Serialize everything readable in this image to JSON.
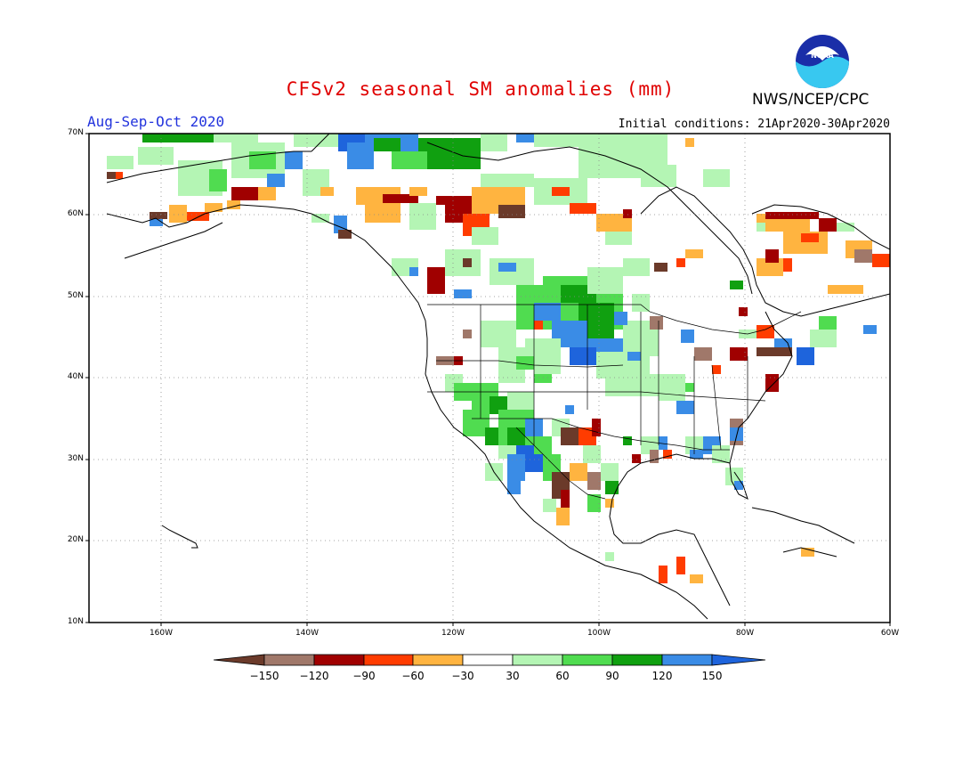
{
  "title": "CFSv2 seasonal SM anomalies (mm)",
  "agency": "NWS/NCEP/CPC",
  "logo_text": "NOAA",
  "season": "Aug-Sep-Oct 2020",
  "initial_conditions": "Initial conditions: 21Apr2020-30Apr2020",
  "lat_ticks": [
    "70N",
    "60N",
    "50N",
    "40N",
    "30N",
    "20N",
    "10N"
  ],
  "lon_ticks": [
    "160W",
    "140W",
    "120W",
    "100W",
    "80W",
    "60W"
  ],
  "colorbar": {
    "labels": [
      "-150",
      "-120",
      "-90",
      "-60",
      "-30",
      "30",
      "60",
      "90",
      "120",
      "150"
    ],
    "colors": [
      "#6b3a2a",
      "#a0786a",
      "#a00000",
      "#ff3c00",
      "#ffb440",
      "#ffffff",
      "#b4f5b4",
      "#50dc50",
      "#10a010",
      "#3a8ce6",
      "#3a8ce6"
    ],
    "colors_ends": {
      "low": "#6b3a2a",
      "high": "#1e64dc"
    }
  }
}
